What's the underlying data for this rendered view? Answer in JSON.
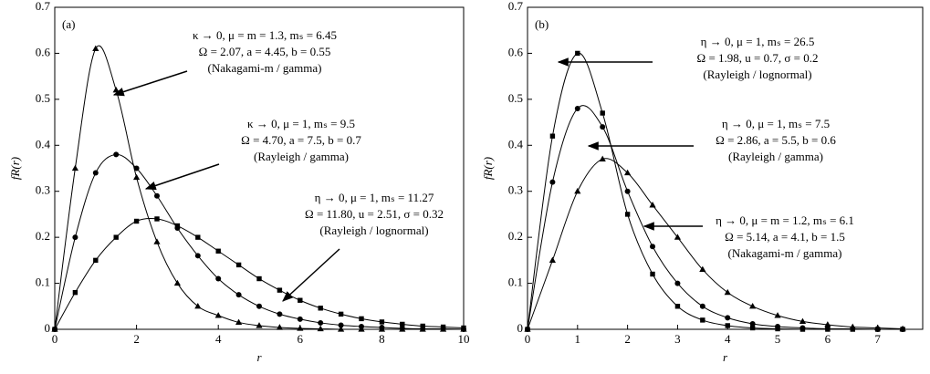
{
  "chart_data": [
    {
      "type": "line",
      "label": "(a)",
      "xlabel": "r",
      "ylabel": "fR(r)",
      "xlim": [
        0,
        10
      ],
      "xticks": [
        0,
        2,
        4,
        6,
        8,
        10
      ],
      "ylim": [
        0,
        0.7
      ],
      "yticks": [
        0,
        0.1,
        0.2,
        0.3,
        0.4,
        0.5,
        0.6,
        0.7
      ],
      "series": [
        {
          "marker": "triangle",
          "color": "#000000",
          "x": [
            0,
            0.5,
            1,
            1.5,
            2,
            2.5,
            3,
            3.5,
            4,
            4.5,
            5,
            5.5,
            6,
            6.5,
            7,
            7.5,
            8,
            8.5,
            9,
            9.5,
            10
          ],
          "values": [
            0,
            0.35,
            0.61,
            0.52,
            0.33,
            0.19,
            0.1,
            0.05,
            0.03,
            0.015,
            0.008,
            0.004,
            0.002,
            0.001,
            0,
            0,
            0,
            0,
            0,
            0,
            0
          ]
        },
        {
          "marker": "circle",
          "color": "#000000",
          "x": [
            0,
            0.5,
            1,
            1.5,
            2,
            2.5,
            3,
            3.5,
            4,
            4.5,
            5,
            5.5,
            6,
            6.5,
            7,
            7.5,
            8,
            8.5,
            9,
            9.5,
            10
          ],
          "values": [
            0,
            0.2,
            0.34,
            0.38,
            0.35,
            0.29,
            0.22,
            0.16,
            0.11,
            0.075,
            0.05,
            0.033,
            0.022,
            0.014,
            0.009,
            0.006,
            0.004,
            0.002,
            0.001,
            0.001,
            0
          ]
        },
        {
          "marker": "square",
          "color": "#000000",
          "x": [
            0,
            0.5,
            1,
            1.5,
            2,
            2.5,
            3,
            3.5,
            4,
            4.5,
            5,
            5.5,
            6,
            6.5,
            7,
            7.5,
            8,
            8.5,
            9,
            9.5,
            10
          ],
          "values": [
            0,
            0.08,
            0.15,
            0.2,
            0.235,
            0.24,
            0.225,
            0.2,
            0.17,
            0.14,
            0.11,
            0.085,
            0.063,
            0.046,
            0.033,
            0.023,
            0.016,
            0.011,
            0.007,
            0.005,
            0.003
          ]
        }
      ],
      "annotations": [
        [
          "κ → 0,  μ = m = 1.3,  mₛ = 6.45",
          "Ω = 2.07, a = 4.45, b = 0.55",
          "(Nakagami-m / gamma)"
        ],
        [
          "κ → 0,  μ = 1,  mₛ = 9.5",
          "Ω = 4.70, a = 7.5, b = 0.7",
          "(Rayleigh / gamma)"
        ],
        [
          "η → 0,  μ = 1,  mₛ = 11.27",
          "Ω = 11.80, u = 2.51, σ = 0.32",
          "(Rayleigh / lognormal)"
        ]
      ]
    },
    {
      "type": "line",
      "label": "(b)",
      "xlabel": "r",
      "ylabel": "fR(r)",
      "xlim": [
        0,
        7.9
      ],
      "xticks": [
        0,
        1,
        2,
        3,
        4,
        5,
        6,
        7
      ],
      "ylim": [
        0,
        0.7
      ],
      "yticks": [
        0,
        0.1,
        0.2,
        0.3,
        0.4,
        0.5,
        0.6,
        0.7
      ],
      "series": [
        {
          "marker": "square",
          "color": "#000000",
          "x": [
            0,
            0.5,
            1,
            1.5,
            2,
            2.5,
            3,
            3.5,
            4,
            4.5,
            5,
            5.5,
            6,
            6.5,
            7,
            7.5
          ],
          "values": [
            0,
            0.42,
            0.6,
            0.47,
            0.25,
            0.12,
            0.05,
            0.02,
            0.008,
            0.003,
            0.001,
            0,
            0,
            0,
            0,
            0
          ]
        },
        {
          "marker": "circle",
          "color": "#000000",
          "x": [
            0,
            0.5,
            1,
            1.5,
            2,
            2.5,
            3,
            3.5,
            4,
            4.5,
            5,
            5.5,
            6,
            6.5,
            7,
            7.5
          ],
          "values": [
            0,
            0.32,
            0.48,
            0.44,
            0.3,
            0.18,
            0.1,
            0.05,
            0.025,
            0.012,
            0.006,
            0.003,
            0.001,
            0.001,
            0,
            0
          ]
        },
        {
          "marker": "triangle",
          "color": "#000000",
          "x": [
            0,
            0.5,
            1,
            1.5,
            2,
            2.5,
            3,
            3.5,
            4,
            4.5,
            5,
            5.5,
            6,
            6.5,
            7,
            7.5
          ],
          "values": [
            0,
            0.15,
            0.3,
            0.37,
            0.34,
            0.27,
            0.2,
            0.13,
            0.08,
            0.05,
            0.03,
            0.017,
            0.01,
            0.005,
            0.003,
            0.001
          ]
        }
      ],
      "annotations": [
        [
          "η → 0,  μ = 1,  mₛ = 26.5",
          "Ω = 1.98, u = 0.7, σ = 0.2",
          "(Rayleigh / lognormal)"
        ],
        [
          "η → 0,  μ = 1,  mₛ = 7.5",
          "Ω = 2.86, a = 5.5, b = 0.6",
          "(Rayleigh / gamma)"
        ],
        [
          "η → 0,  μ = m = 1.2,  mₛ = 6.1",
          "Ω = 5.14, a = 4.1, b = 1.5",
          "(Nakagami-m / gamma)"
        ]
      ]
    }
  ]
}
